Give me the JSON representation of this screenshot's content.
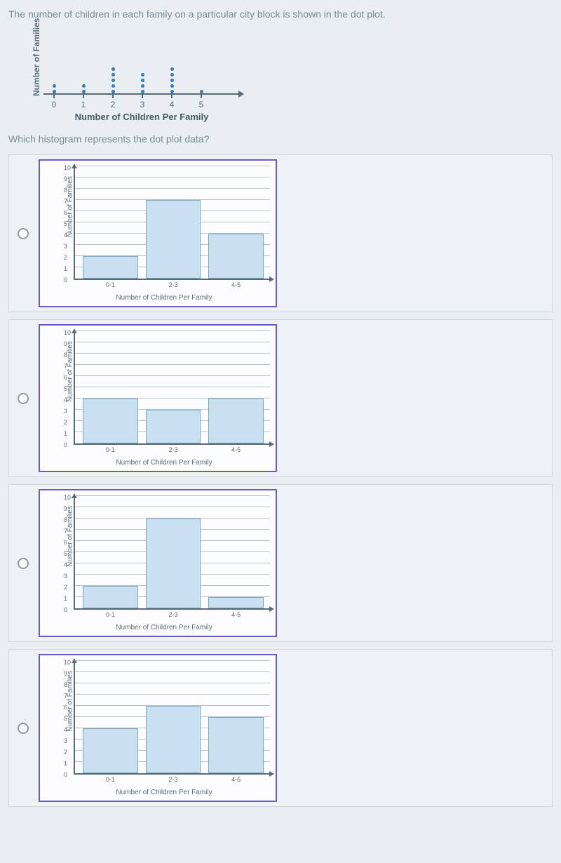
{
  "question": "The number of children in each family on a particular city block is shown in the dot plot.",
  "sub_question": "Which histogram represents the dot plot data?",
  "dotplot": {
    "y_label": "Number of\nFamilies",
    "x_label": "Number of Children Per Family",
    "categories": [
      "0",
      "1",
      "2",
      "3",
      "4",
      "5"
    ],
    "counts": [
      2,
      2,
      5,
      4,
      5,
      1
    ],
    "dot_color": "#3a7ab5",
    "axis_color": "#5a6a75"
  },
  "histogram_common": {
    "y_label": "Number of Families",
    "x_label": "Number of Children Per Family",
    "y_ticks": [
      0,
      1,
      2,
      3,
      4,
      5,
      6,
      7,
      8,
      9,
      10
    ],
    "y_max": 10,
    "x_tick_labels": [
      "0-1",
      "2-3",
      "4-5"
    ],
    "bar_color": "#c8e0f0",
    "bar_border": "#7aa5c5",
    "grid_color": "#b8c2c8",
    "card_border": "#6a5acd"
  },
  "options": [
    {
      "id": "A",
      "bars": [
        2,
        7,
        4
      ]
    },
    {
      "id": "B",
      "bars": [
        4,
        3,
        4
      ]
    },
    {
      "id": "C",
      "bars": [
        2,
        8,
        1
      ]
    },
    {
      "id": "D",
      "bars": [
        4,
        6,
        5
      ]
    }
  ]
}
